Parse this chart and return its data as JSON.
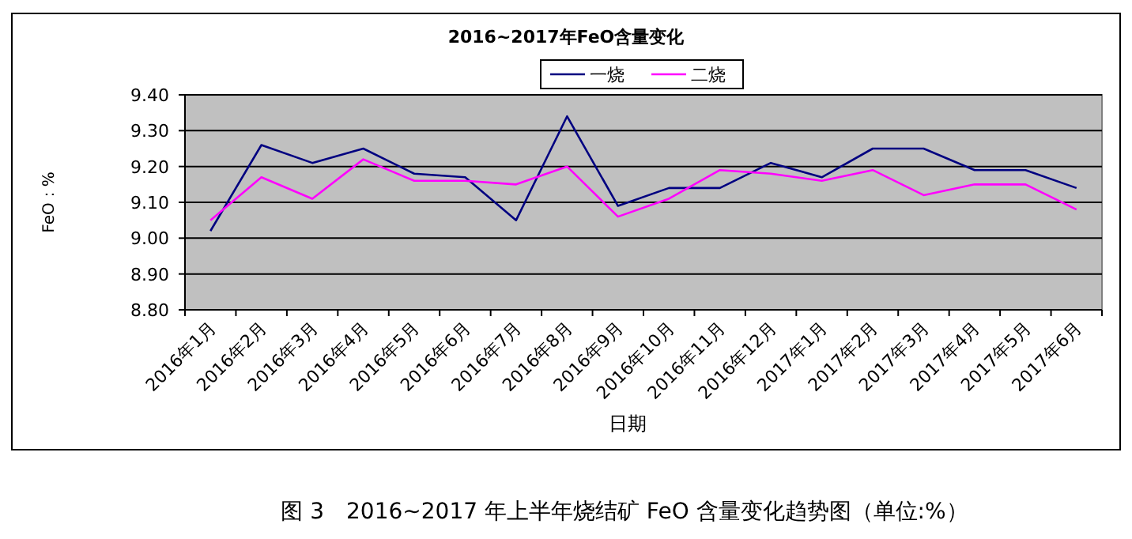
{
  "chart_data": {
    "type": "line",
    "title": "2016~2017年FeO含量变化",
    "xlabel": "日期",
    "ylabel": "FeO：%",
    "annotations": [
      "图 3　2016~2017 年上半年烧结矿 FeO 含量变化趋势图（单位:%）"
    ],
    "categories": [
      "2016年1月",
      "2016年2月",
      "2016年3月",
      "2016年4月",
      "2016年5月",
      "2016年6月",
      "2016年7月",
      "2016年8月",
      "2016年9月",
      "2016年10月",
      "2016年11月",
      "2016年12月",
      "2017年1月",
      "2017年2月",
      "2017年3月",
      "2017年4月",
      "2017年5月",
      "2017年6月"
    ],
    "series": [
      {
        "name": "一烧",
        "color": "#000080",
        "values": [
          9.02,
          9.26,
          9.21,
          9.25,
          9.18,
          9.17,
          9.05,
          9.34,
          9.09,
          9.14,
          9.14,
          9.21,
          9.17,
          9.25,
          9.25,
          9.19,
          9.19,
          9.14
        ]
      },
      {
        "name": "二烧",
        "color": "#ff00ff",
        "values": [
          9.05,
          9.17,
          9.11,
          9.22,
          9.16,
          9.16,
          9.15,
          9.2,
          9.06,
          9.11,
          9.19,
          9.18,
          9.16,
          9.19,
          9.12,
          9.15,
          9.15,
          9.08
        ]
      }
    ],
    "ylim": [
      8.8,
      9.4
    ],
    "yticks": [
      {
        "value": 8.8,
        "label": "8.80"
      },
      {
        "value": 8.9,
        "label": "8.90"
      },
      {
        "value": 9.0,
        "label": "9.00"
      },
      {
        "value": 9.1,
        "label": "9.10"
      },
      {
        "value": 9.2,
        "label": "9.20"
      },
      {
        "value": 9.3,
        "label": "9.30"
      },
      {
        "value": 9.4,
        "label": "9.40"
      }
    ],
    "grid": "y",
    "legend": "top",
    "marker": "none",
    "line_style": "solid"
  }
}
